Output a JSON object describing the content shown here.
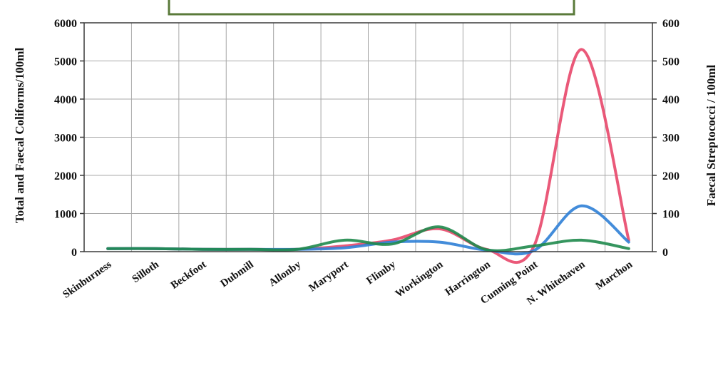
{
  "chart_data": {
    "type": "line",
    "title": "",
    "categories": [
      "Skinburness",
      "Silloth",
      "Beckfoot",
      "Dubmill",
      "Allonby",
      "Maryport",
      "Flimby",
      "Workington",
      "Harrington",
      "Cunning Point",
      "N. Whitehaven",
      "Marchon"
    ],
    "ylabel": "Total and Faecal Coliforms/100ml",
    "y2label": "Faecal Streptococci / 100ml",
    "ylim": [
      0,
      6000
    ],
    "y2lim": [
      0,
      600
    ],
    "yticks": [
      "0",
      "1000",
      "2000",
      "3000",
      "4000",
      "5000",
      "6000"
    ],
    "y2ticks": [
      "0",
      "100",
      "200",
      "300",
      "400",
      "500",
      "600"
    ],
    "grid": true,
    "legend": "none",
    "series": [
      {
        "axis": "left",
        "color": "#e8476a",
        "values": [
          80,
          80,
          60,
          60,
          60,
          150,
          300,
          600,
          60,
          150,
          5300,
          300
        ]
      },
      {
        "axis": "left",
        "color": "#2f7fd6",
        "values": [
          80,
          80,
          60,
          60,
          60,
          100,
          250,
          250,
          40,
          30,
          1200,
          250
        ]
      },
      {
        "axis": "right",
        "color": "#1f8a4c",
        "values": [
          8,
          8,
          6,
          6,
          6,
          30,
          20,
          65,
          5,
          15,
          30,
          8
        ]
      }
    ],
    "colors": {
      "plot_border": "#3a3a3a",
      "grid": "#a8a8a8",
      "legend_border": "#5a7a3a"
    }
  }
}
